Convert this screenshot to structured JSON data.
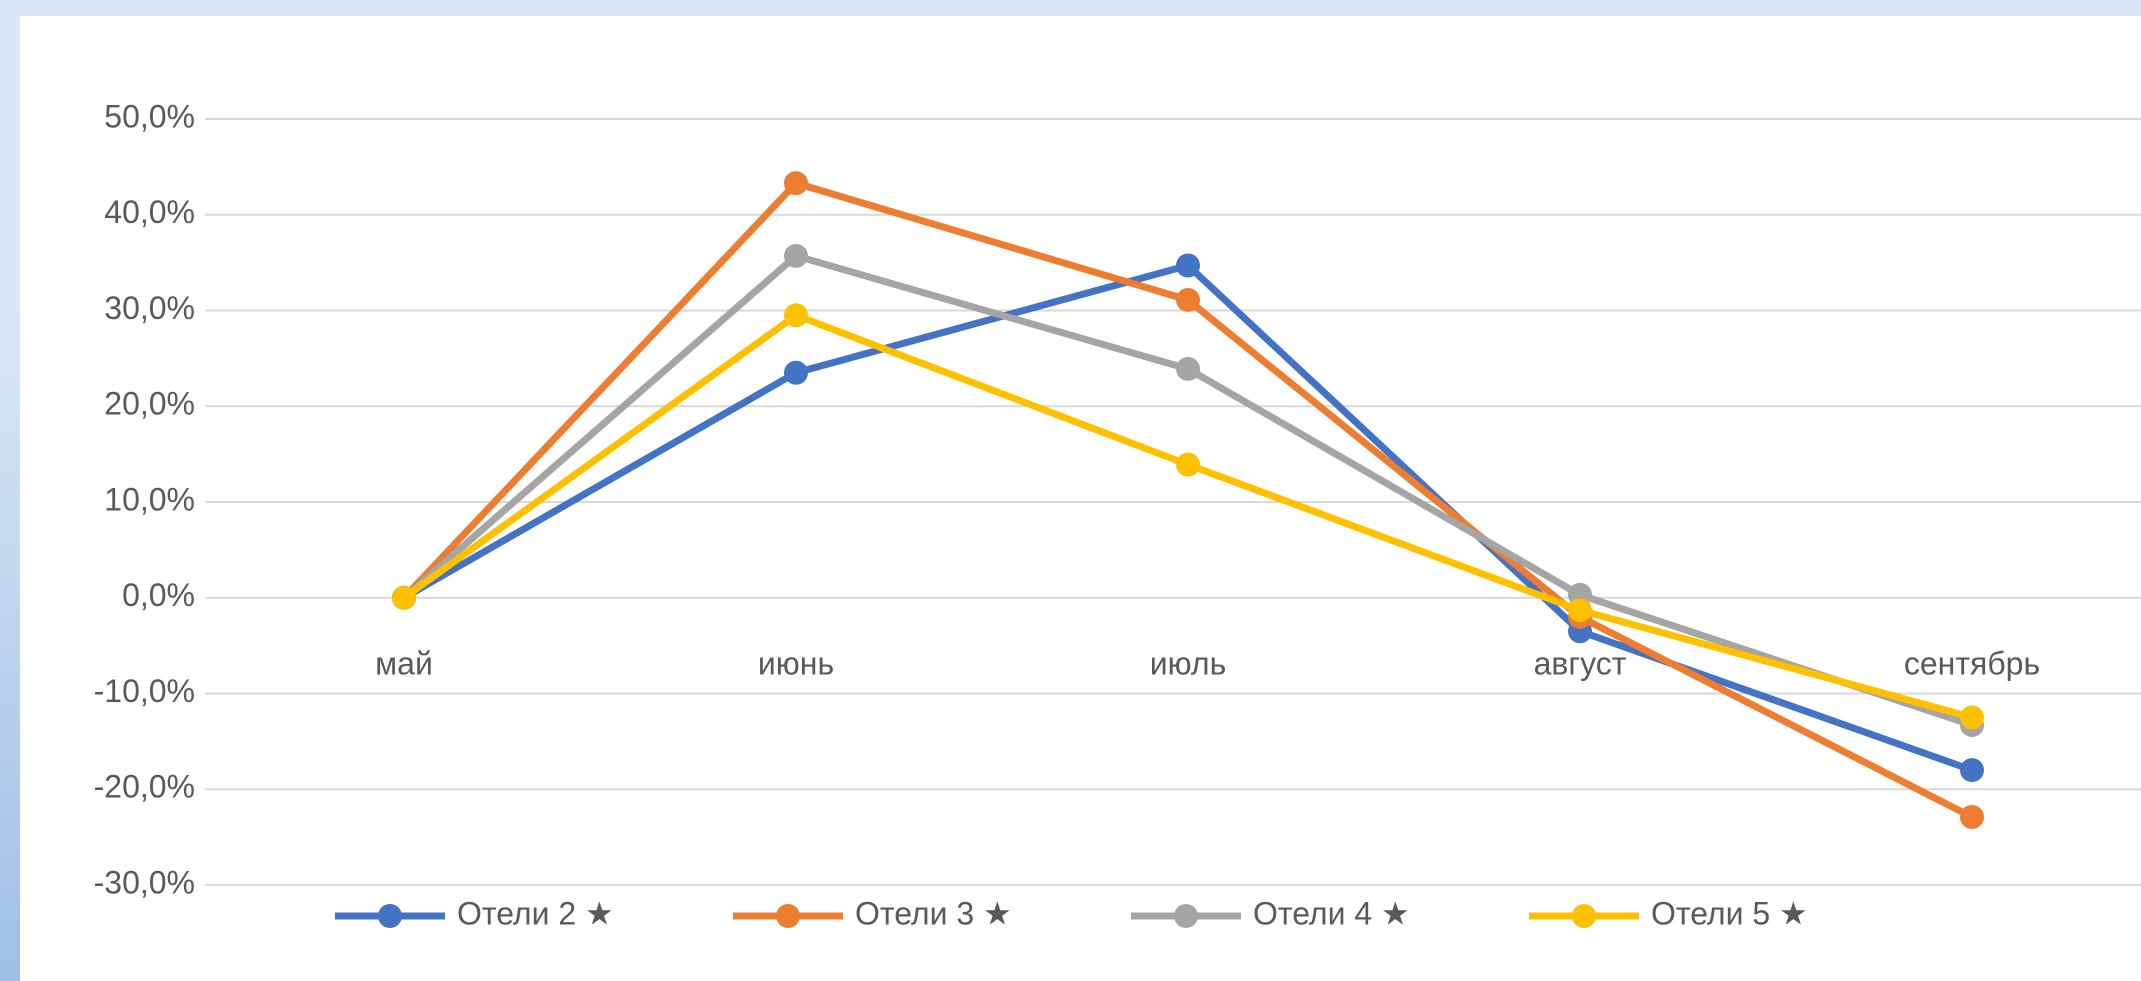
{
  "chart_data": {
    "type": "line",
    "categories": [
      "май",
      "июнь",
      "июль",
      "август",
      "сентябрь"
    ],
    "series": [
      {
        "name": "Отели 2 ★",
        "color": "#4472c4",
        "values": [
          0,
          23.5,
          34.7,
          -3.5,
          -18
        ]
      },
      {
        "name": "Отели 3 ★",
        "color": "#ed7d31",
        "values": [
          0,
          43.3,
          31.1,
          -2,
          -22.9
        ]
      },
      {
        "name": "Отели 4 ★",
        "color": "#a5a5a5",
        "values": [
          0,
          35.7,
          23.9,
          0.3,
          -13.3
        ]
      },
      {
        "name": "Отели 5 ★",
        "color": "#ffc000",
        "values": [
          0,
          29.5,
          13.9,
          -1.3,
          -12.5
        ]
      }
    ],
    "ylim": [
      -30,
      50
    ],
    "yticks": [
      {
        "value": -30,
        "label": "-30,0%"
      },
      {
        "value": -20,
        "label": "-20,0%"
      },
      {
        "value": -10,
        "label": "-10,0%"
      },
      {
        "value": 0,
        "label": "0,0%"
      },
      {
        "value": 10,
        "label": "10,0%"
      },
      {
        "value": 20,
        "label": "20,0%"
      },
      {
        "value": 30,
        "label": "30,0%"
      },
      {
        "value": 40,
        "label": "40,0%"
      },
      {
        "value": 50,
        "label": "50,0%"
      }
    ],
    "grid": true,
    "legend": "bottom"
  }
}
